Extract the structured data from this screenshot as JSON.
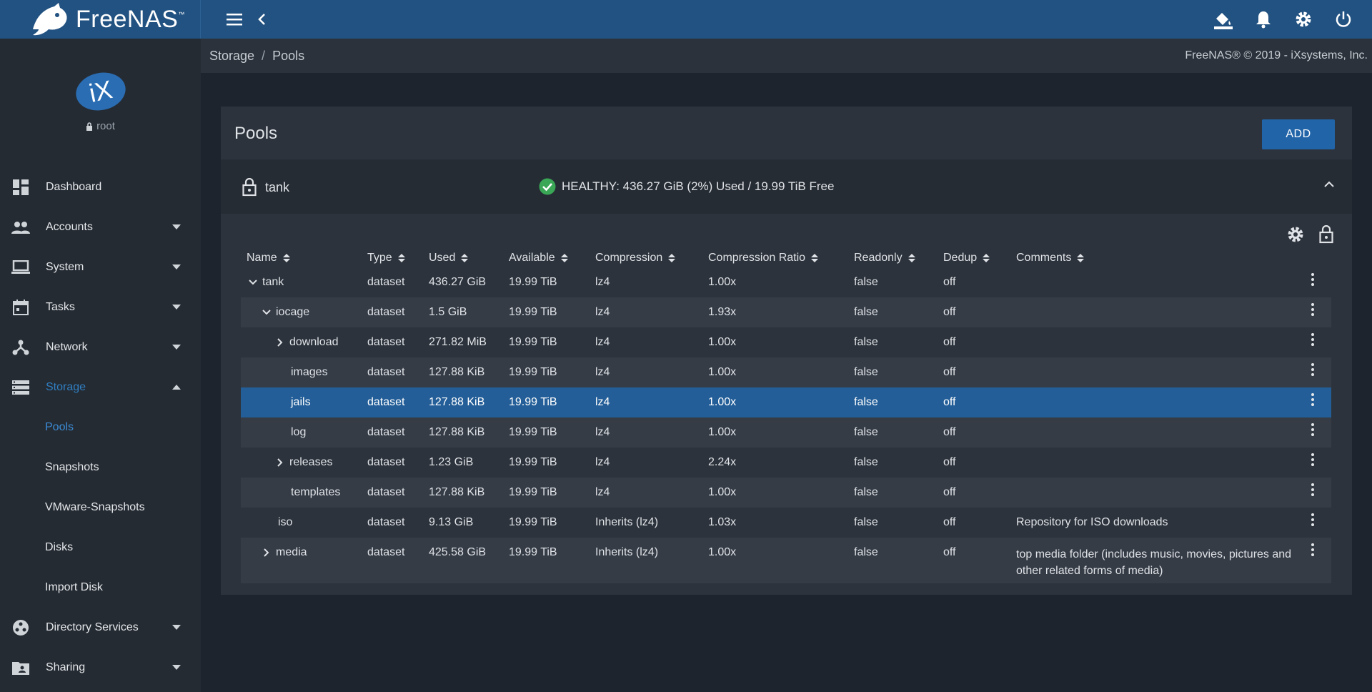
{
  "app": {
    "brand": "FreeNAS",
    "logo_text": "iX",
    "user": "root"
  },
  "breadcrumb": {
    "parent": "Storage",
    "current": "Pools"
  },
  "copyright": "FreeNAS® © 2019 - iXsystems, Inc.",
  "sidebar": {
    "items": [
      {
        "label": "Dashboard",
        "icon": "dashboard-icon"
      },
      {
        "label": "Accounts",
        "icon": "people-icon"
      },
      {
        "label": "System",
        "icon": "laptop-icon"
      },
      {
        "label": "Tasks",
        "icon": "calendar-icon"
      },
      {
        "label": "Network",
        "icon": "network-icon"
      },
      {
        "label": "Storage",
        "icon": "storage-icon"
      },
      {
        "label": "Directory Services",
        "icon": "directory-icon"
      },
      {
        "label": "Sharing",
        "icon": "folder-share-icon"
      }
    ],
    "storage_sub": [
      "Pools",
      "Snapshots",
      "VMware-Snapshots",
      "Disks",
      "Import Disk"
    ]
  },
  "card": {
    "title": "Pools",
    "add_label": "ADD",
    "pool_name": "tank",
    "pool_status": "HEALTHY: 436.27 GiB (2%) Used / 19.99 TiB Free"
  },
  "table": {
    "columns": [
      "Name",
      "Type",
      "Used",
      "Available",
      "Compression",
      "Compression Ratio",
      "Readonly",
      "Dedup",
      "Comments"
    ],
    "rows": [
      {
        "name": "tank",
        "type": "dataset",
        "used": "436.27 GiB",
        "available": "19.99 TiB",
        "compression": "lz4",
        "ratio": "1.00x",
        "readonly": "false",
        "dedup": "off",
        "comments": ""
      },
      {
        "name": "iocage",
        "type": "dataset",
        "used": "1.5 GiB",
        "available": "19.99 TiB",
        "compression": "lz4",
        "ratio": "1.93x",
        "readonly": "false",
        "dedup": "off",
        "comments": ""
      },
      {
        "name": "download",
        "type": "dataset",
        "used": "271.82 MiB",
        "available": "19.99 TiB",
        "compression": "lz4",
        "ratio": "1.00x",
        "readonly": "false",
        "dedup": "off",
        "comments": ""
      },
      {
        "name": "images",
        "type": "dataset",
        "used": "127.88 KiB",
        "available": "19.99 TiB",
        "compression": "lz4",
        "ratio": "1.00x",
        "readonly": "false",
        "dedup": "off",
        "comments": ""
      },
      {
        "name": "jails",
        "type": "dataset",
        "used": "127.88 KiB",
        "available": "19.99 TiB",
        "compression": "lz4",
        "ratio": "1.00x",
        "readonly": "false",
        "dedup": "off",
        "comments": ""
      },
      {
        "name": "log",
        "type": "dataset",
        "used": "127.88 KiB",
        "available": "19.99 TiB",
        "compression": "lz4",
        "ratio": "1.00x",
        "readonly": "false",
        "dedup": "off",
        "comments": ""
      },
      {
        "name": "releases",
        "type": "dataset",
        "used": "1.23 GiB",
        "available": "19.99 TiB",
        "compression": "lz4",
        "ratio": "2.24x",
        "readonly": "false",
        "dedup": "off",
        "comments": ""
      },
      {
        "name": "templates",
        "type": "dataset",
        "used": "127.88 KiB",
        "available": "19.99 TiB",
        "compression": "lz4",
        "ratio": "1.00x",
        "readonly": "false",
        "dedup": "off",
        "comments": ""
      },
      {
        "name": "iso",
        "type": "dataset",
        "used": "9.13 GiB",
        "available": "19.99 TiB",
        "compression": "Inherits (lz4)",
        "ratio": "1.03x",
        "readonly": "false",
        "dedup": "off",
        "comments": "Repository for ISO downloads"
      },
      {
        "name": "media",
        "type": "dataset",
        "used": "425.58 GiB",
        "available": "19.99 TiB",
        "compression": "Inherits (lz4)",
        "ratio": "1.00x",
        "readonly": "false",
        "dedup": "off",
        "comments": "top media folder (includes music, movies, pictures and other related forms of media)"
      }
    ]
  },
  "colors": {
    "topbar": "#225281",
    "accent": "#2264a8",
    "selected_row": "#235e98",
    "healthy": "#3aa757"
  }
}
